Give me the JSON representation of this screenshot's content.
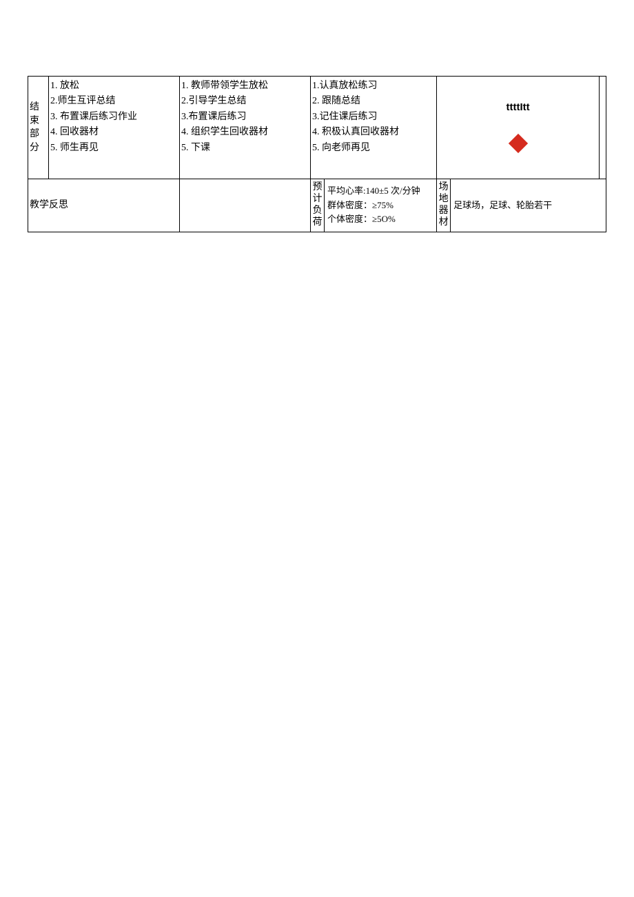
{
  "row1": {
    "section_label": "结束部分",
    "content_items": "1. 放松\n2.师生互评总结\n3. 布置课后练习作业\n4. 回收器材\n5. 师生再见",
    "teacher_items": "1. 教师带领学生放松\n2.引导学生总结\n3.布置课后练习\n4. 组织学生回收器材\n5. 下课",
    "student_items": "1.认真放松练习\n2. 跟随总结\n3.记住课后练习\n4. 积极认真回收器材\n5. 向老师再见",
    "diagram_text": "ttttItt",
    "diagram_color": "#d52b1e"
  },
  "row2": {
    "reflect_label": "教学反思",
    "load_label": "预计负荷",
    "load_text": "平均心率:140±5 次/分钟\n群体密度：≥75%\n个体密度：≥5O%",
    "venue_label": "场地器材",
    "venue_text": "足球场，足球、轮胎若干"
  }
}
